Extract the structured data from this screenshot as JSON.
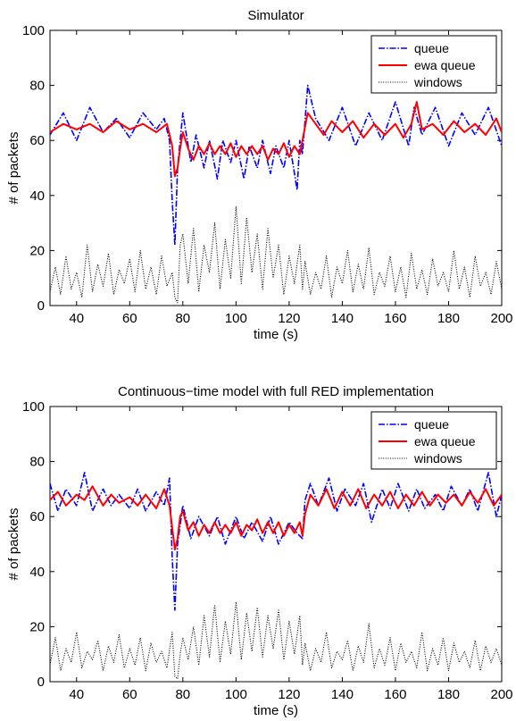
{
  "chart_data": [
    {
      "type": "line",
      "title": "Simulator",
      "xlabel": "time (s)",
      "ylabel": "# of packets",
      "xlim": [
        30,
        200
      ],
      "ylim": [
        0,
        100
      ],
      "x_ticks": [
        "40",
        "60",
        "80",
        "100",
        "120",
        "140",
        "160",
        "180",
        "200"
      ],
      "y_ticks": [
        "0",
        "20",
        "40",
        "60",
        "80",
        "100"
      ],
      "legend": {
        "placement": "top-right",
        "entries": [
          "queue",
          "ewa queue",
          "windows"
        ]
      },
      "series": [
        {
          "name": "queue",
          "color": "#0000ff",
          "style": "dash-dot",
          "x": [
            30,
            35,
            40,
            45,
            50,
            55,
            60,
            65,
            70,
            73,
            75,
            76,
            77,
            78,
            80,
            83,
            85,
            88,
            90,
            93,
            95,
            98,
            100,
            103,
            105,
            108,
            110,
            113,
            115,
            118,
            120,
            123,
            124,
            125,
            127,
            130,
            135,
            140,
            145,
            150,
            155,
            160,
            165,
            167,
            170,
            175,
            180,
            185,
            190,
            195,
            200
          ],
          "y": [
            62,
            70,
            60,
            72,
            63,
            68,
            61,
            70,
            64,
            68,
            60,
            38,
            22,
            50,
            70,
            52,
            62,
            50,
            60,
            46,
            60,
            52,
            60,
            46,
            58,
            50,
            60,
            48,
            58,
            50,
            60,
            42,
            60,
            55,
            80,
            68,
            60,
            72,
            58,
            70,
            60,
            74,
            58,
            72,
            62,
            72,
            58,
            70,
            62,
            72,
            58
          ]
        },
        {
          "name": "ewa queue",
          "color": "#ff0000",
          "style": "solid",
          "x": [
            30,
            35,
            40,
            45,
            50,
            55,
            60,
            65,
            70,
            74,
            76,
            77,
            78,
            79,
            80,
            82,
            84,
            86,
            88,
            90,
            92,
            94,
            96,
            98,
            100,
            102,
            104,
            106,
            108,
            110,
            112,
            114,
            116,
            118,
            120,
            122,
            124,
            125,
            127,
            130,
            133,
            136,
            140,
            144,
            148,
            152,
            156,
            160,
            163,
            166,
            168,
            170,
            174,
            178,
            182,
            186,
            190,
            194,
            198,
            200
          ],
          "y": [
            63,
            66,
            64,
            66,
            63,
            67,
            64,
            66,
            63,
            66,
            58,
            47,
            50,
            57,
            63,
            57,
            53,
            58,
            55,
            59,
            55,
            58,
            55,
            59,
            54,
            58,
            55,
            58,
            55,
            58,
            53,
            57,
            55,
            59,
            54,
            58,
            55,
            60,
            70,
            66,
            62,
            67,
            63,
            67,
            61,
            66,
            62,
            66,
            61,
            66,
            74,
            64,
            66,
            62,
            67,
            63,
            66,
            62,
            68,
            63
          ]
        },
        {
          "name": "windows",
          "color": "#000000",
          "style": "dotted",
          "x": [
            30,
            32,
            34,
            36,
            38,
            40,
            42,
            44,
            46,
            48,
            50,
            52,
            54,
            56,
            58,
            60,
            62,
            64,
            66,
            68,
            70,
            72,
            74,
            76,
            77,
            78,
            79,
            80,
            82,
            84,
            86,
            88,
            90,
            92,
            94,
            96,
            98,
            100,
            102,
            104,
            106,
            108,
            110,
            112,
            114,
            116,
            118,
            120,
            122,
            124,
            125,
            126,
            128,
            130,
            132,
            134,
            136,
            138,
            140,
            142,
            144,
            146,
            148,
            150,
            152,
            154,
            156,
            158,
            160,
            162,
            164,
            166,
            168,
            170,
            172,
            174,
            176,
            178,
            180,
            182,
            184,
            186,
            188,
            190,
            192,
            194,
            196,
            198,
            200
          ],
          "y": [
            5,
            14,
            4,
            18,
            6,
            12,
            3,
            22,
            5,
            15,
            7,
            19,
            4,
            13,
            8,
            17,
            5,
            20,
            6,
            14,
            4,
            18,
            7,
            12,
            3,
            1,
            22,
            26,
            8,
            28,
            5,
            22,
            12,
            30,
            6,
            24,
            10,
            36,
            8,
            32,
            12,
            26,
            6,
            28,
            10,
            22,
            4,
            18,
            8,
            22,
            6,
            16,
            4,
            12,
            6,
            18,
            3,
            14,
            8,
            20,
            5,
            15,
            6,
            21,
            4,
            12,
            7,
            18,
            5,
            14,
            3,
            19,
            6,
            13,
            4,
            17,
            7,
            12,
            5,
            20,
            6,
            14,
            3,
            18,
            7,
            12,
            4,
            16,
            6
          ]
        }
      ]
    },
    {
      "type": "line",
      "title": "Continuous−time model with full RED implementation",
      "xlabel": "time (s)",
      "ylabel": "# of packets",
      "xlim": [
        30,
        200
      ],
      "ylim": [
        0,
        100
      ],
      "x_ticks": [
        "40",
        "60",
        "80",
        "100",
        "120",
        "140",
        "160",
        "180",
        "200"
      ],
      "y_ticks": [
        "0",
        "20",
        "40",
        "60",
        "80",
        "100"
      ],
      "legend": {
        "placement": "top-right",
        "entries": [
          "queue",
          "ewa queue",
          "windows"
        ]
      },
      "series": [
        {
          "name": "queue",
          "color": "#0000ff",
          "style": "dash-dot",
          "x": [
            30,
            33,
            36,
            40,
            43,
            46,
            50,
            53,
            56,
            60,
            63,
            66,
            70,
            73,
            75,
            76,
            77,
            78,
            80,
            83,
            86,
            90,
            93,
            96,
            100,
            103,
            106,
            110,
            113,
            116,
            120,
            123,
            125,
            126,
            128,
            131,
            135,
            138,
            141,
            145,
            148,
            151,
            155,
            158,
            161,
            165,
            168,
            171,
            175,
            178,
            181,
            185,
            188,
            191,
            195,
            198,
            200
          ],
          "y": [
            72,
            62,
            70,
            64,
            76,
            62,
            70,
            64,
            68,
            63,
            70,
            62,
            69,
            64,
            74,
            45,
            26,
            50,
            64,
            52,
            60,
            53,
            60,
            50,
            60,
            52,
            58,
            51,
            60,
            50,
            58,
            54,
            52,
            66,
            72,
            64,
            74,
            62,
            70,
            64,
            72,
            58,
            70,
            63,
            72,
            62,
            70,
            63,
            68,
            62,
            71,
            64,
            70,
            62,
            76,
            60,
            68
          ]
        },
        {
          "name": "ewa queue",
          "color": "#ff0000",
          "style": "solid",
          "x": [
            30,
            33,
            36,
            40,
            43,
            46,
            50,
            53,
            56,
            60,
            63,
            66,
            70,
            73,
            75,
            76,
            77,
            78,
            79,
            80,
            82,
            84,
            86,
            88,
            90,
            92,
            94,
            96,
            98,
            100,
            102,
            104,
            106,
            108,
            110,
            112,
            114,
            116,
            118,
            120,
            122,
            124,
            125,
            126,
            128,
            131,
            134,
            137,
            140,
            143,
            146,
            149,
            152,
            155,
            158,
            161,
            164,
            167,
            170,
            173,
            176,
            179,
            182,
            185,
            188,
            191,
            194,
            197,
            200
          ],
          "y": [
            66,
            69,
            64,
            68,
            66,
            71,
            64,
            68,
            65,
            67,
            64,
            68,
            63,
            70,
            64,
            56,
            48,
            52,
            60,
            62,
            55,
            58,
            53,
            57,
            54,
            58,
            54,
            57,
            54,
            58,
            53,
            57,
            55,
            59,
            54,
            58,
            54,
            58,
            53,
            57,
            54,
            58,
            53,
            61,
            68,
            64,
            70,
            63,
            69,
            64,
            70,
            63,
            68,
            64,
            69,
            63,
            68,
            64,
            69,
            64,
            68,
            65,
            68,
            64,
            69,
            65,
            70,
            64,
            68
          ]
        },
        {
          "name": "windows",
          "color": "#000000",
          "style": "dotted",
          "x": [
            30,
            32,
            34,
            36,
            38,
            40,
            42,
            44,
            46,
            48,
            50,
            52,
            54,
            56,
            58,
            60,
            62,
            64,
            66,
            68,
            70,
            72,
            74,
            76,
            77,
            78,
            79,
            80,
            82,
            84,
            86,
            88,
            90,
            92,
            94,
            96,
            98,
            100,
            102,
            104,
            106,
            108,
            110,
            112,
            114,
            116,
            118,
            120,
            122,
            124,
            125,
            126,
            128,
            130,
            132,
            134,
            136,
            138,
            140,
            142,
            144,
            146,
            148,
            150,
            152,
            154,
            156,
            158,
            160,
            162,
            164,
            166,
            168,
            170,
            172,
            174,
            176,
            178,
            180,
            182,
            184,
            186,
            188,
            190,
            192,
            194,
            196,
            198,
            200
          ],
          "y": [
            6,
            16,
            4,
            12,
            7,
            18,
            5,
            11,
            8,
            15,
            4,
            13,
            7,
            17,
            5,
            12,
            6,
            16,
            4,
            14,
            7,
            11,
            5,
            18,
            2,
            1,
            10,
            16,
            8,
            20,
            6,
            24,
            9,
            28,
            7,
            22,
            10,
            29,
            8,
            25,
            11,
            27,
            9,
            24,
            12,
            26,
            8,
            22,
            10,
            24,
            6,
            14,
            4,
            12,
            7,
            18,
            5,
            11,
            8,
            15,
            4,
            13,
            7,
            21,
            5,
            12,
            6,
            16,
            4,
            14,
            7,
            11,
            5,
            18,
            4,
            12,
            6,
            16,
            4,
            14,
            7,
            11,
            5,
            15,
            4,
            13,
            7,
            12,
            6
          ]
        }
      ]
    }
  ]
}
